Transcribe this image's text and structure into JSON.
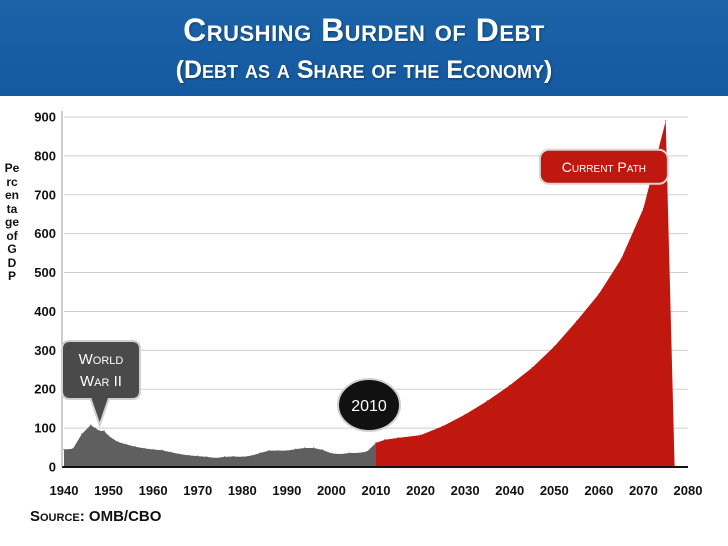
{
  "header": {
    "title": "Crushing Burden of Debt",
    "subtitle": "(Debt as a Share of the Economy)"
  },
  "source": {
    "label": "Source:",
    "value": "OMB/CBO"
  },
  "colors": {
    "header_bg": "#1a5fa5",
    "historical_fill": "#5f5f5f",
    "projection_fill": "#c0170f",
    "label_dark": "#111111"
  },
  "chart_data": {
    "type": "area",
    "title": "Crushing Burden of Debt",
    "subtitle": "(Debt as a Share of the Economy)",
    "xlabel": "",
    "ylabel": "Percentage of GDP",
    "xlim": [
      1940,
      2080
    ],
    "ylim": [
      0,
      900
    ],
    "x_ticks": [
      1940,
      1950,
      1960,
      1970,
      1980,
      1990,
      2000,
      2010,
      2020,
      2030,
      2040,
      2050,
      2060,
      2070,
      2080
    ],
    "y_ticks": [
      0,
      100,
      200,
      300,
      400,
      500,
      600,
      700,
      800,
      900
    ],
    "grid": true,
    "series": [
      {
        "name": "",
        "color": "#5f5f5f",
        "x": [
          1940,
          1942,
          1944,
          1946,
          1947,
          1948,
          1949,
          1950,
          1952,
          1954,
          1956,
          1958,
          1960,
          1962,
          1964,
          1966,
          1968,
          1970,
          1972,
          1974,
          1976,
          1978,
          1980,
          1982,
          1984,
          1986,
          1988,
          1990,
          1992,
          1994,
          1996,
          1998,
          2000,
          2002,
          2004,
          2006,
          2008,
          2010
        ],
        "values": [
          45,
          47,
          85,
          108,
          100,
          93,
          93,
          80,
          65,
          58,
          52,
          48,
          45,
          43,
          38,
          33,
          30,
          28,
          26,
          23,
          26,
          27,
          26,
          29,
          36,
          42,
          42,
          42,
          46,
          49,
          49,
          44,
          35,
          33,
          36,
          36,
          40,
          62
        ]
      },
      {
        "name": "Current Path",
        "color": "#c0170f",
        "x": [
          2010,
          2012,
          2015,
          2020,
          2025,
          2030,
          2035,
          2040,
          2045,
          2050,
          2055,
          2060,
          2065,
          2070,
          2075,
          2077
        ],
        "values": [
          62,
          70,
          75,
          82,
          105,
          135,
          170,
          210,
          255,
          310,
          375,
          445,
          535,
          665,
          890,
          0
        ]
      }
    ],
    "annotations": [
      {
        "text": "World War II",
        "lines": [
          "World",
          "War II"
        ],
        "x": 1948,
        "y": 100
      },
      {
        "text": "2010",
        "x": 2010,
        "y": 62
      },
      {
        "text": "Current Path",
        "x": 2071,
        "y": 790
      }
    ]
  }
}
